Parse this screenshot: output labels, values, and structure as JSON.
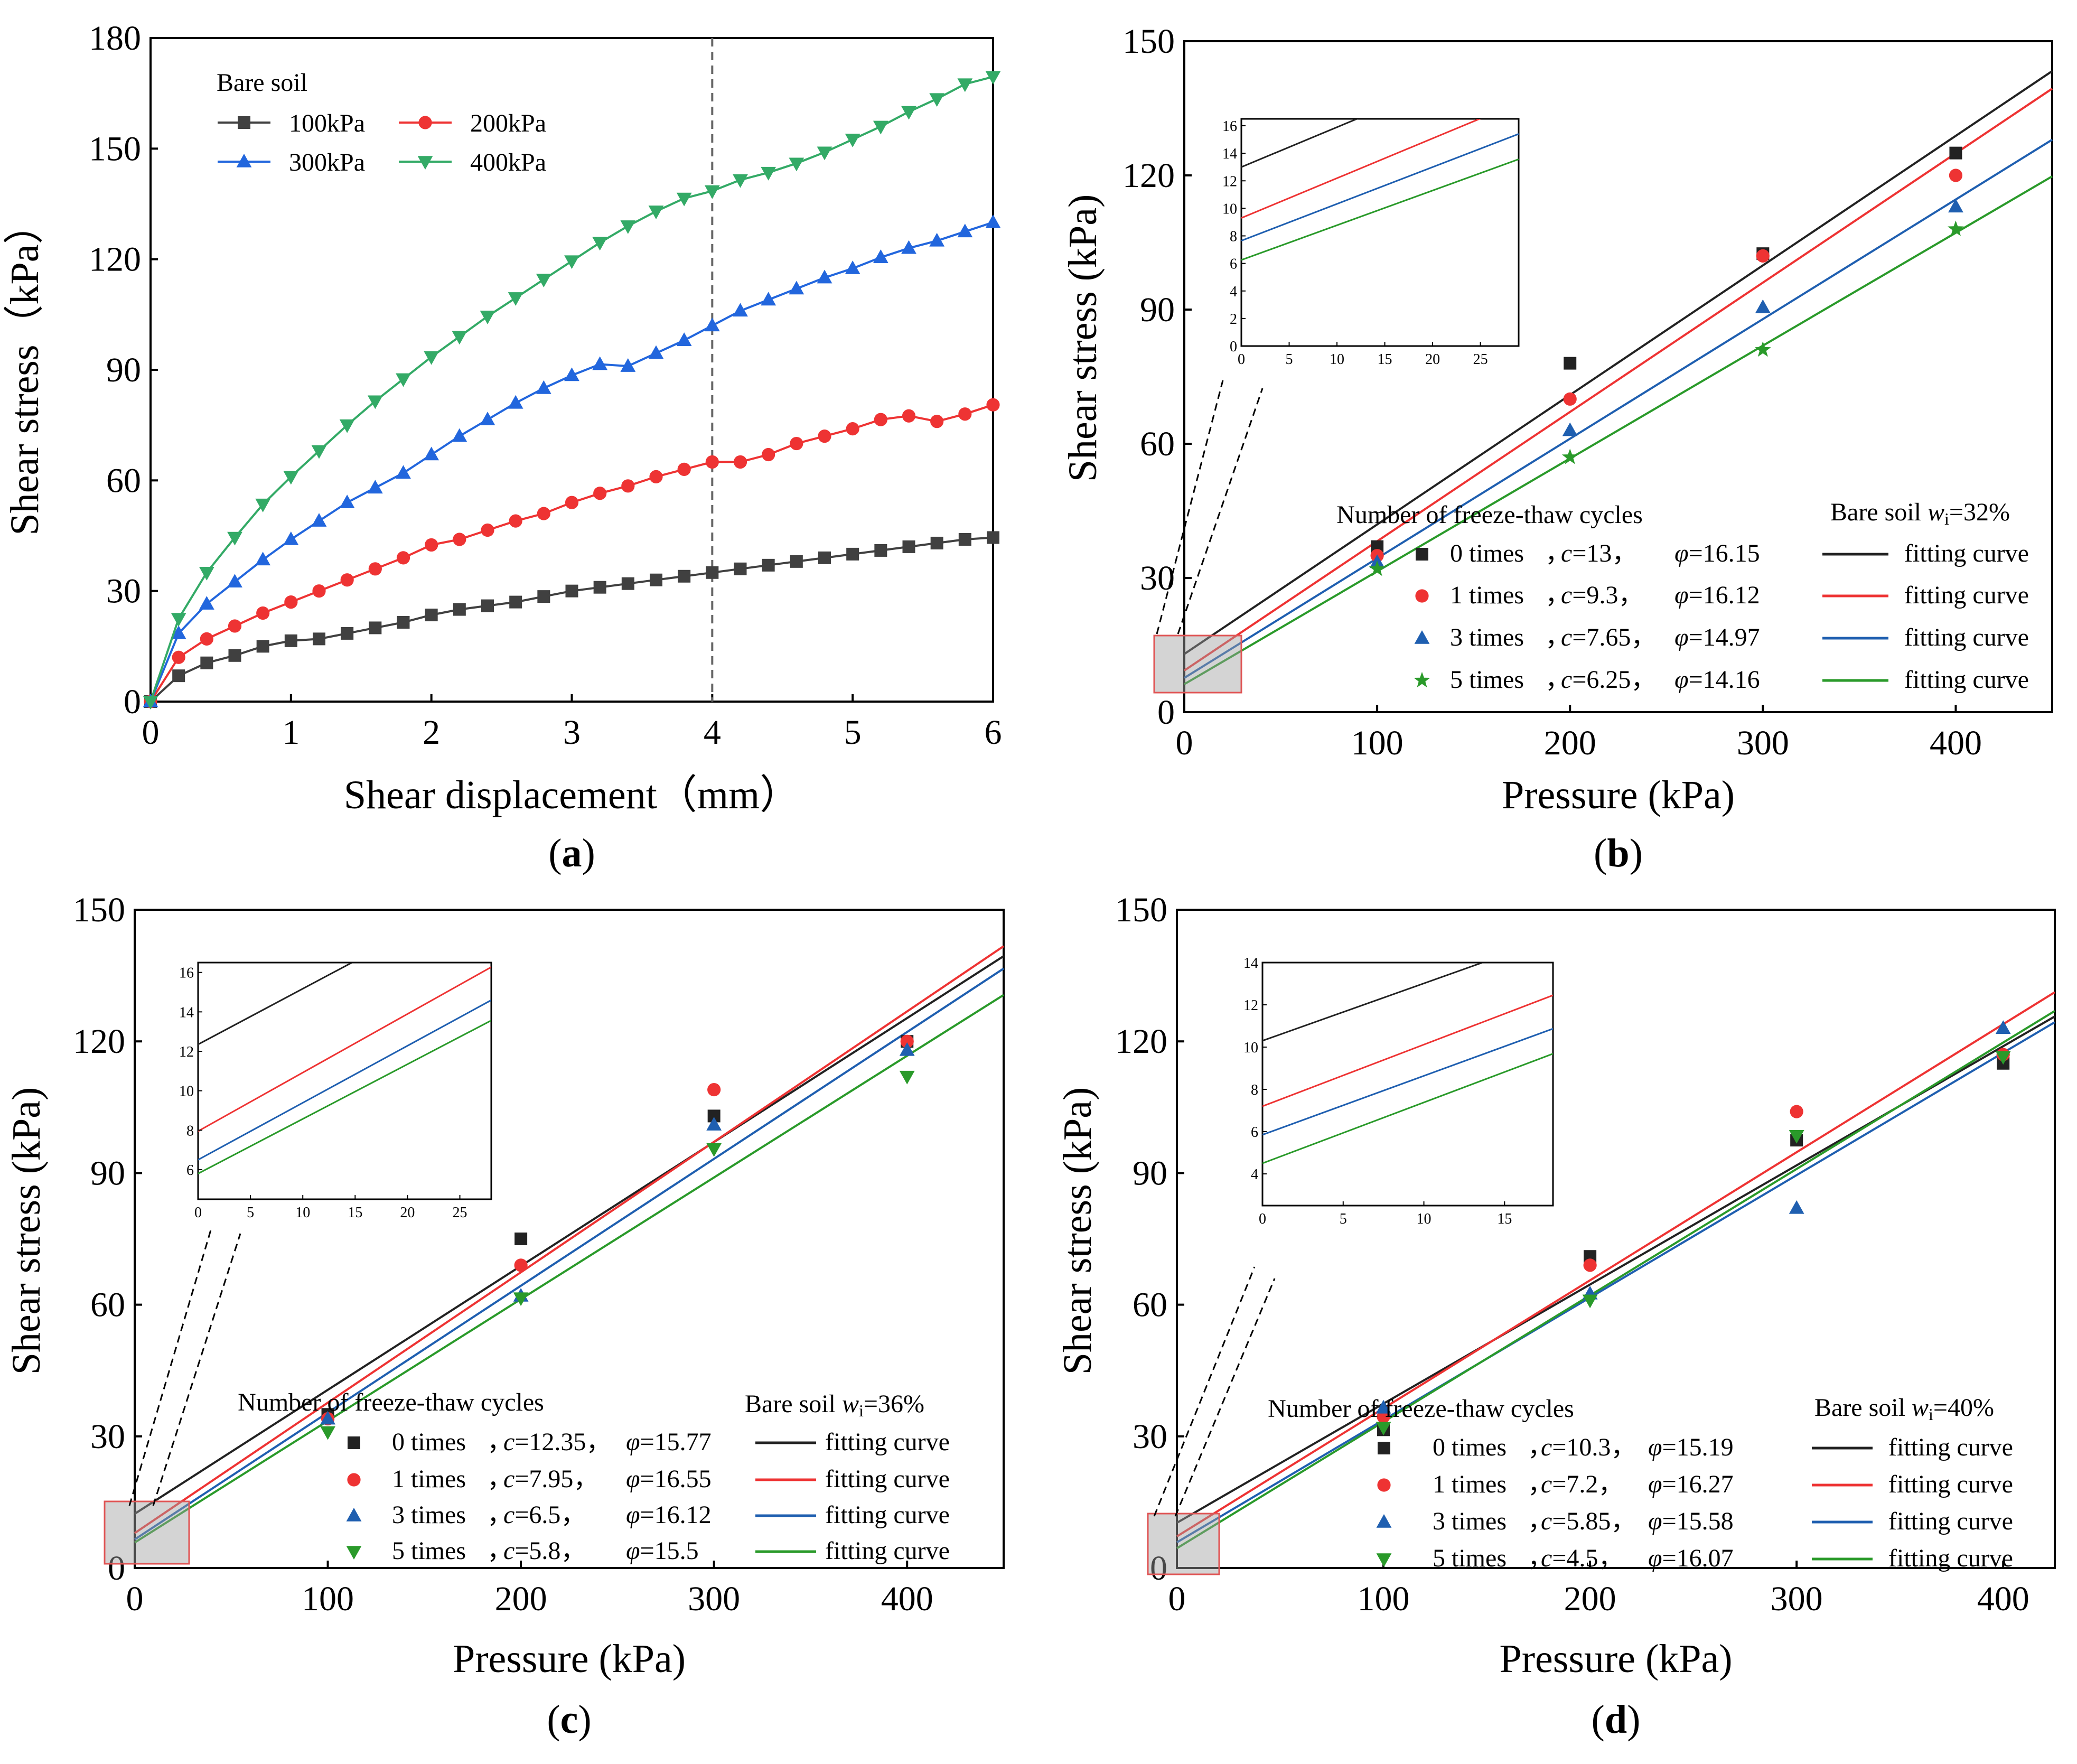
{
  "chart_data": [
    {
      "type": "line",
      "caption": "(a)",
      "caption_parts": {
        "open": "(",
        "letter": "a",
        "close": ")"
      },
      "xlabel": "Shear displacement（mm）",
      "ylabel": "Shear stress（kPa）",
      "xlim": [
        0,
        6
      ],
      "ylim": [
        0,
        180
      ],
      "xticks": [
        0,
        1,
        2,
        3,
        4,
        5,
        6
      ],
      "yticks": [
        0,
        30,
        60,
        90,
        120,
        150,
        180
      ],
      "vline_x": 4,
      "legend_title": "Bare soil",
      "x": [
        0,
        0.2,
        0.4,
        0.6,
        0.8,
        1.0,
        1.2,
        1.4,
        1.6,
        1.8,
        2.0,
        2.2,
        2.4,
        2.6,
        2.8,
        3.0,
        3.2,
        3.4,
        3.6,
        3.8,
        4.0,
        4.2,
        4.4,
        4.6,
        4.8,
        5.0,
        5.2,
        5.4,
        5.6,
        5.8,
        6.0
      ],
      "series": [
        {
          "name": "100kPa",
          "color": "#404040",
          "marker": "square",
          "values": [
            0,
            7,
            10.5,
            12.5,
            15,
            16.5,
            17,
            18.5,
            20,
            21.5,
            23.5,
            25,
            26,
            27,
            28.5,
            30,
            31,
            32,
            33,
            34,
            35,
            36,
            37,
            38,
            39,
            40,
            41,
            42,
            43,
            44,
            44.5
          ]
        },
        {
          "name": "200kPa",
          "color": "#ee3333",
          "marker": "circle",
          "values": [
            0,
            12,
            17,
            20.5,
            24,
            27,
            30,
            33,
            36,
            39,
            42.5,
            44,
            46.5,
            49,
            51,
            54,
            56.5,
            58.5,
            61,
            63,
            65,
            65,
            67,
            70,
            72,
            74,
            76.5,
            77.5,
            76,
            78,
            80.5
          ]
        },
        {
          "name": "300kPa",
          "color": "#2266dd",
          "marker": "triangle-up",
          "values": [
            0,
            18.5,
            26.5,
            32.5,
            38.5,
            44,
            49,
            54,
            58,
            62,
            67,
            72,
            76.5,
            81,
            85,
            88.5,
            91.5,
            91,
            94.5,
            98,
            102,
            106,
            109,
            112,
            115,
            117.5,
            120.5,
            123,
            125,
            127.5,
            130
          ]
        },
        {
          "name": "400kPa",
          "color": "#33aa66",
          "marker": "triangle-down",
          "values": [
            0,
            22.5,
            35,
            44.5,
            53.5,
            61,
            68,
            75,
            81.5,
            87.5,
            93.5,
            99,
            104.5,
            109.5,
            114.5,
            119.5,
            124.5,
            129,
            133,
            136.5,
            138.5,
            141.5,
            143.5,
            146,
            149,
            152.5,
            156,
            160,
            163.5,
            167.5,
            169.5
          ]
        }
      ]
    },
    {
      "type": "scatter",
      "caption": "(b)",
      "caption_parts": {
        "open": "(",
        "letter": "b",
        "close": ")"
      },
      "xlabel": "Pressure (kPa)",
      "ylabel": "Shear stress (kPa)",
      "xlim": [
        0,
        450
      ],
      "ylim": [
        0,
        150
      ],
      "xticks": [
        0,
        100,
        200,
        300,
        400
      ],
      "yticks": [
        0,
        30,
        60,
        90,
        120,
        150
      ],
      "x": [
        100,
        200,
        300,
        400
      ],
      "legend_header": "Number of freeze-thaw cycles",
      "legend_right": {
        "prefix": "Bare soil",
        "var": "w",
        "sub": "i",
        "eq": "=32%"
      },
      "fit_label": "fitting curve",
      "inset": {
        "xlim": [
          0,
          29
        ],
        "ylim": [
          0,
          16.5
        ],
        "xticks": [
          0,
          5,
          10,
          15,
          20,
          25
        ],
        "yticks": [
          0,
          2,
          4,
          6,
          8,
          10,
          12,
          14,
          16
        ]
      },
      "series": [
        {
          "label": "0 times",
          "c": "13",
          "phi": "16.15",
          "color": "#222222",
          "marker": "square",
          "fit": {
            "intercept": 13,
            "slope": 0.2896
          },
          "values": [
            37,
            78,
            102.5,
            125
          ]
        },
        {
          "label": "1 times",
          "c": "9.3",
          "phi": "16.12",
          "color": "#ee3333",
          "marker": "circle",
          "fit": {
            "intercept": 9.3,
            "slope": 0.2891
          },
          "values": [
            35,
            70,
            102,
            120
          ]
        },
        {
          "label": "3 times",
          "c": "7.65",
          "phi": "14.97",
          "color": "#1f5fb0",
          "marker": "triangle-up",
          "fit": {
            "intercept": 7.65,
            "slope": 0.2674
          },
          "values": [
            33.5,
            63,
            90.5,
            113
          ]
        },
        {
          "label": "5 times",
          "c": "6.25",
          "phi": "14.16",
          "color": "#2a9a2a",
          "marker": "star",
          "fit": {
            "intercept": 6.25,
            "slope": 0.2523
          },
          "values": [
            32,
            57,
            81,
            108
          ]
        }
      ]
    },
    {
      "type": "scatter",
      "caption": "(c)",
      "caption_parts": {
        "open": "(",
        "letter": "c",
        "close": ")"
      },
      "xlabel": "Pressure (kPa)",
      "ylabel": "Shear stress (kPa)",
      "xlim": [
        0,
        450
      ],
      "ylim": [
        0,
        150
      ],
      "xticks": [
        0,
        100,
        200,
        300,
        400
      ],
      "yticks": [
        0,
        30,
        60,
        90,
        120,
        150
      ],
      "x": [
        100,
        200,
        300,
        400
      ],
      "legend_header": "Number of freeze-thaw cycles",
      "legend_right": {
        "prefix": "Bare soil",
        "var": "w",
        "sub": "i",
        "eq": "=36%"
      },
      "fit_label": "fitting curve",
      "inset": {
        "xlim": [
          0,
          28
        ],
        "ylim": [
          4.5,
          16.5
        ],
        "xticks": [
          0,
          5,
          10,
          15,
          20,
          25
        ],
        "yticks": [
          6,
          8,
          10,
          12,
          14,
          16
        ]
      },
      "series": [
        {
          "label": "0 times",
          "c": "12.35",
          "phi": "15.77",
          "color": "#222222",
          "marker": "square",
          "fit": {
            "intercept": 12.35,
            "slope": 0.2824
          },
          "values": [
            35,
            75,
            103,
            120
          ]
        },
        {
          "label": "1 times",
          "c": "7.95",
          "phi": "16.55",
          "color": "#ee3333",
          "marker": "circle",
          "fit": {
            "intercept": 7.95,
            "slope": 0.2972
          },
          "values": [
            34,
            69,
            109,
            120
          ]
        },
        {
          "label": "3 times",
          "c": "6.5",
          "phi": "16.12",
          "color": "#1f5fb0",
          "marker": "triangle-up",
          "fit": {
            "intercept": 6.5,
            "slope": 0.2891
          },
          "values": [
            34,
            62,
            101,
            118
          ]
        },
        {
          "label": "5 times",
          "c": "5.8",
          "phi": "15.5",
          "color": "#2a9a2a",
          "marker": "triangle-down",
          "fit": {
            "intercept": 5.8,
            "slope": 0.2773
          },
          "values": [
            31,
            61.5,
            95.5,
            112
          ]
        }
      ]
    },
    {
      "type": "scatter",
      "caption": "(d)",
      "caption_parts": {
        "open": "(",
        "letter": "d",
        "close": ")"
      },
      "xlabel": "Pressure (kPa)",
      "ylabel": "Shear stress (kPa)",
      "xlim": [
        0,
        425
      ],
      "ylim": [
        0,
        150
      ],
      "xticks": [
        0,
        100,
        200,
        300,
        400
      ],
      "yticks": [
        0,
        30,
        60,
        90,
        120,
        150
      ],
      "x": [
        100,
        200,
        300,
        400
      ],
      "legend_header": "Number of freeze-thaw cycles",
      "legend_right": {
        "prefix": "Bare soil",
        "var": "w",
        "sub": "i",
        "eq": "=40%"
      },
      "fit_label": "fitting curve",
      "inset": {
        "xlim": [
          0,
          18
        ],
        "ylim": [
          2.5,
          14
        ],
        "xticks": [
          0,
          5,
          10,
          15
        ],
        "yticks": [
          4,
          6,
          8,
          10,
          12,
          14
        ]
      },
      "series": [
        {
          "label": "0 times",
          "c": "10.3",
          "phi": "15.19",
          "color": "#222222",
          "marker": "square",
          "fit": {
            "intercept": 10.3,
            "slope": 0.2715
          },
          "values": [
            31.5,
            71,
            97.5,
            115
          ]
        },
        {
          "label": "1 times",
          "c": "7.2",
          "phi": "16.27",
          "color": "#ee3333",
          "marker": "circle",
          "fit": {
            "intercept": 7.2,
            "slope": 0.2918
          },
          "values": [
            34.5,
            69,
            104,
            117
          ]
        },
        {
          "label": "3 times",
          "c": "5.85",
          "phi": "15.58",
          "color": "#1f5fb0",
          "marker": "triangle-up",
          "fit": {
            "intercept": 5.85,
            "slope": 0.2789
          },
          "values": [
            36.5,
            62.5,
            82,
            123
          ]
        },
        {
          "label": "5 times",
          "c": "4.5",
          "phi": "16.07",
          "color": "#2a9a2a",
          "marker": "triangle-down",
          "fit": {
            "intercept": 4.5,
            "slope": 0.2881
          },
          "values": [
            32,
            61,
            98.5,
            116.5
          ]
        }
      ]
    }
  ]
}
